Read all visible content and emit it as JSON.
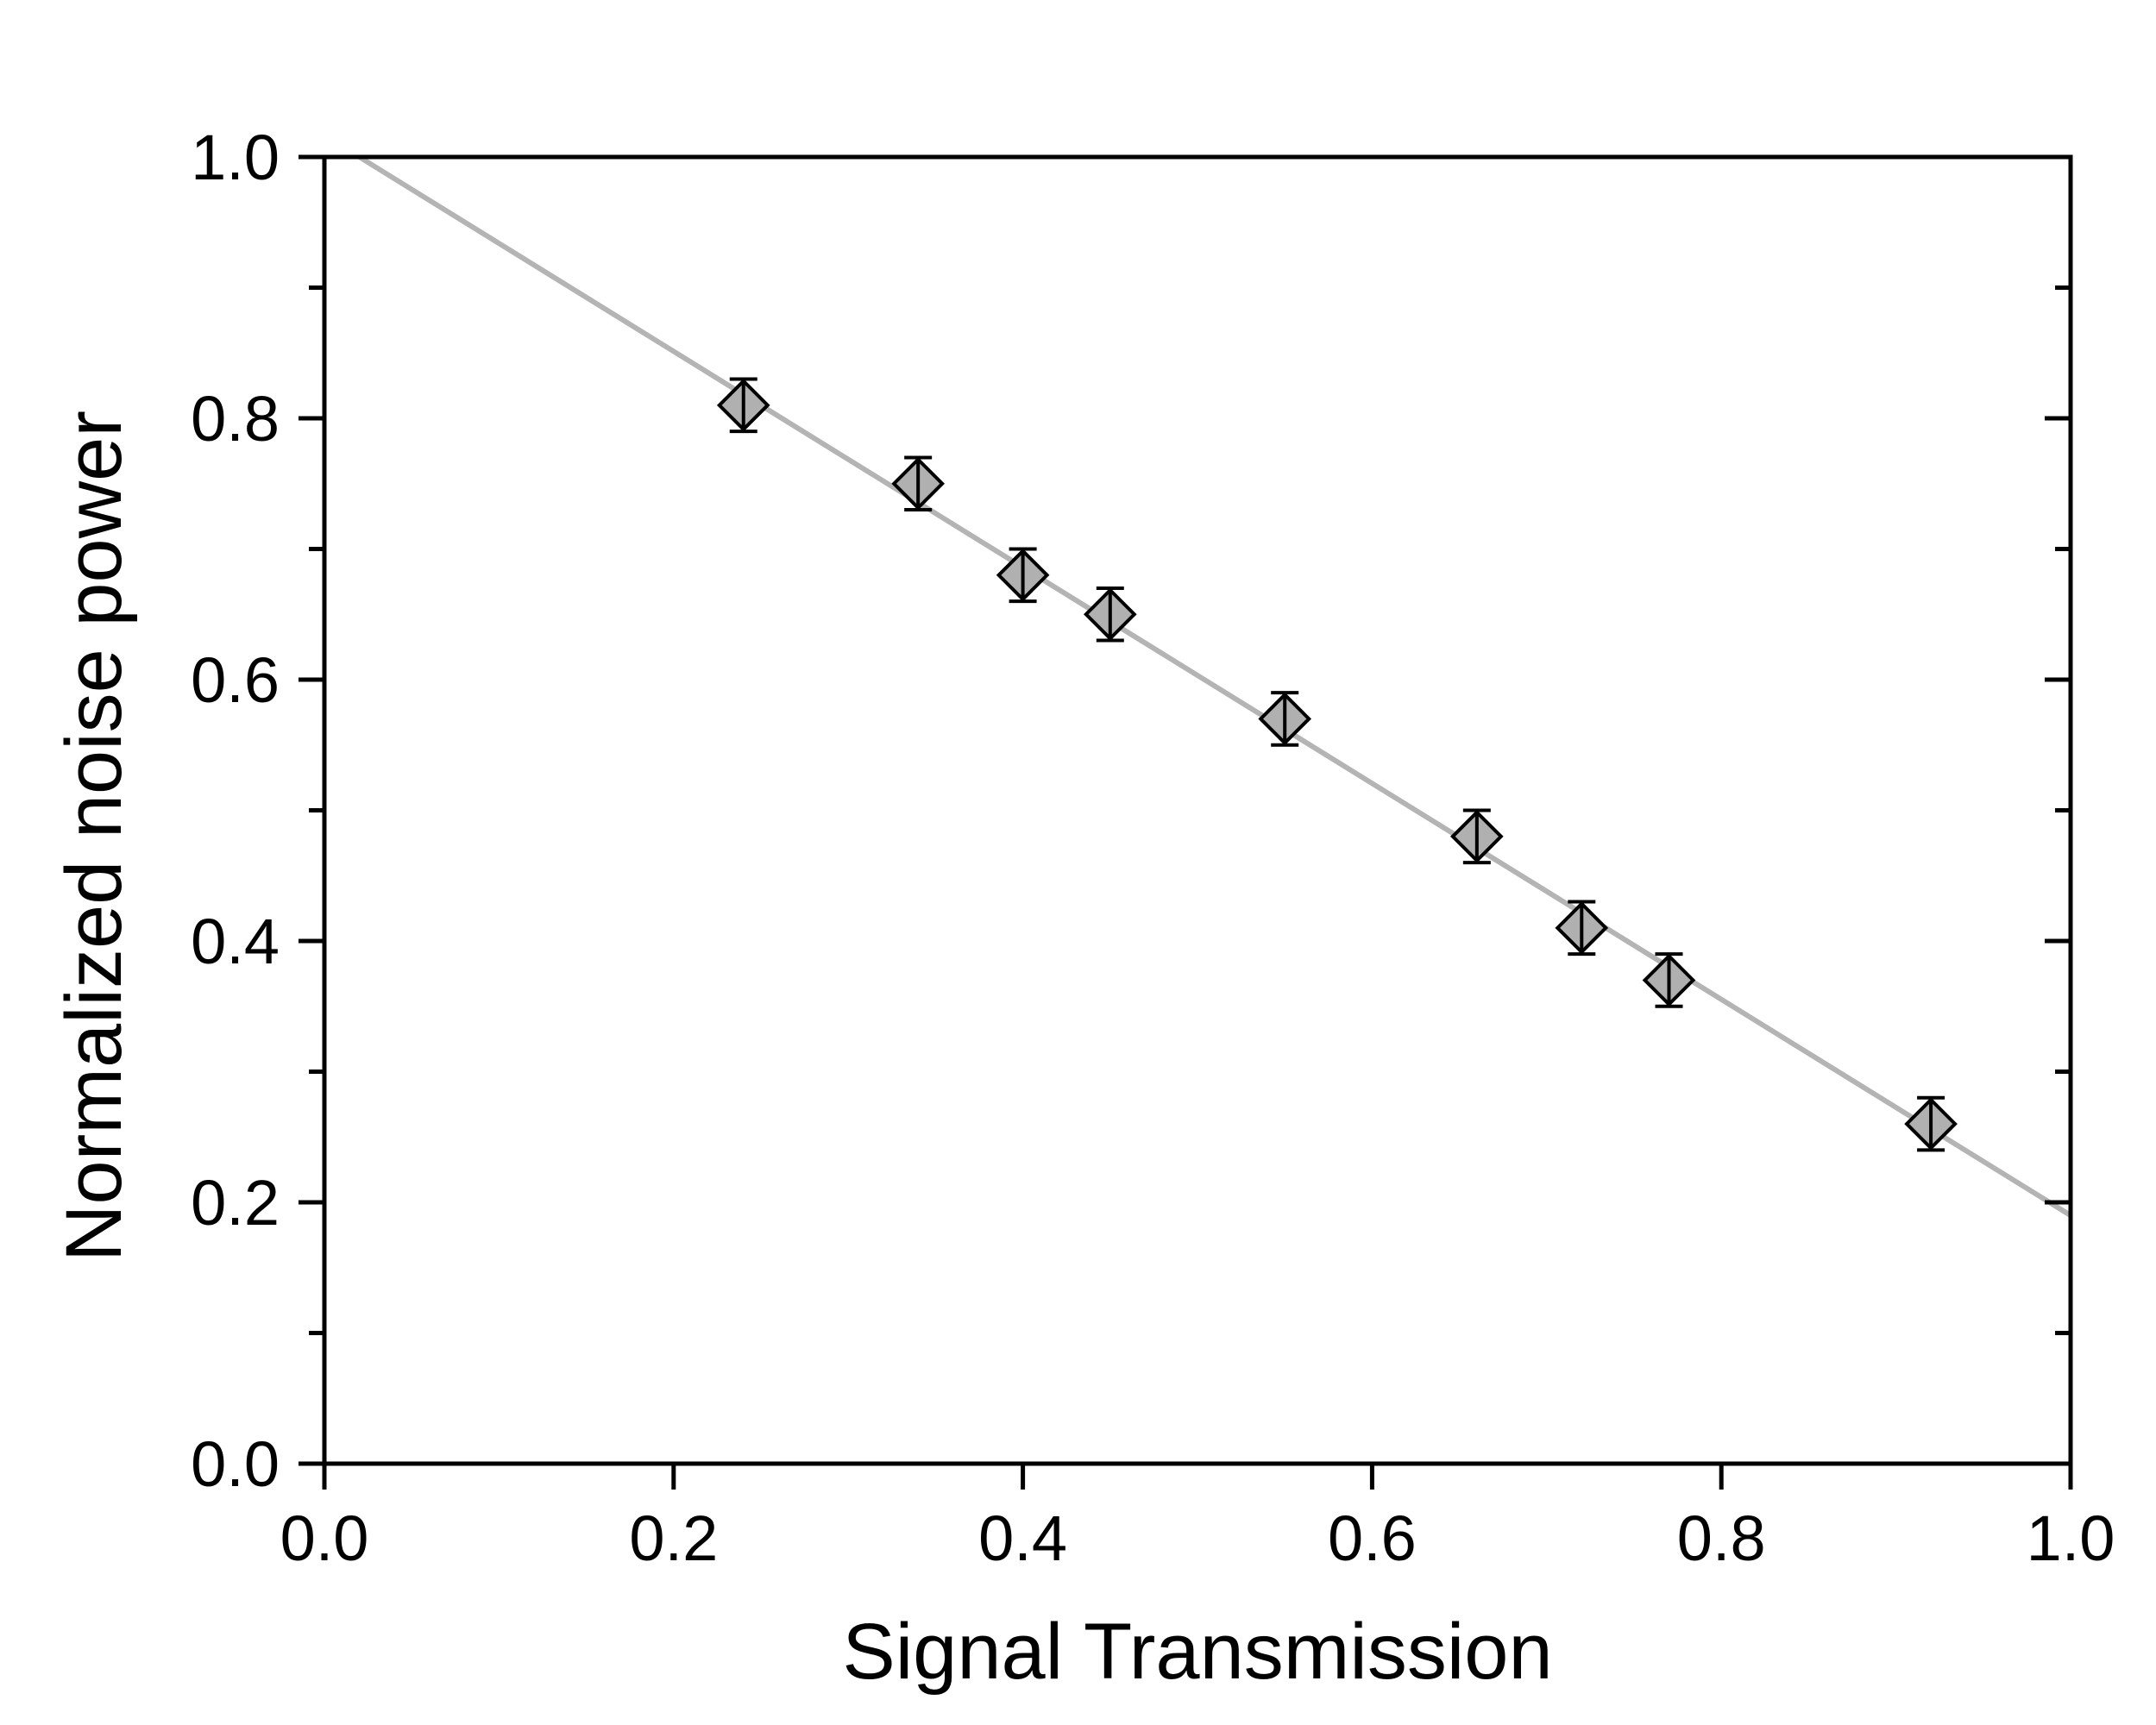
{
  "chart_data": {
    "type": "scatter",
    "xlabel": "Signal Transmission",
    "ylabel": "Normalized noise power",
    "xlim": [
      0.0,
      1.0
    ],
    "ylim": [
      0.0,
      1.0
    ],
    "x_ticks": [
      "0.0",
      "0.2",
      "0.4",
      "0.6",
      "0.8",
      "1.0"
    ],
    "y_ticks": [
      "0.0",
      "0.2",
      "0.4",
      "0.6",
      "0.8",
      "1.0"
    ],
    "x_tick_values": [
      0.0,
      0.2,
      0.4,
      0.6,
      0.8,
      1.0
    ],
    "y_tick_values": [
      0.0,
      0.2,
      0.4,
      0.6,
      0.8,
      1.0
    ],
    "y_minor_tick_values": [
      0.1,
      0.3,
      0.5,
      0.7,
      0.9
    ],
    "grid": false,
    "series": [
      {
        "marker": "diamond",
        "marker_fill": "#b0b0b0",
        "marker_edge": "#000000",
        "points": [
          {
            "x": 0.24,
            "y": 0.81,
            "err": 0.02
          },
          {
            "x": 0.34,
            "y": 0.75,
            "err": 0.02
          },
          {
            "x": 0.4,
            "y": 0.68,
            "err": 0.02
          },
          {
            "x": 0.45,
            "y": 0.65,
            "err": 0.02
          },
          {
            "x": 0.55,
            "y": 0.57,
            "err": 0.02
          },
          {
            "x": 0.66,
            "y": 0.48,
            "err": 0.02
          },
          {
            "x": 0.72,
            "y": 0.41,
            "err": 0.02
          },
          {
            "x": 0.77,
            "y": 0.37,
            "err": 0.02
          },
          {
            "x": 0.92,
            "y": 0.26,
            "err": 0.02
          }
        ]
      }
    ],
    "fit_line": {
      "x": [
        0.02,
        1.0
      ],
      "y": [
        1.0,
        0.19
      ],
      "color": "#b4b4b4"
    }
  }
}
